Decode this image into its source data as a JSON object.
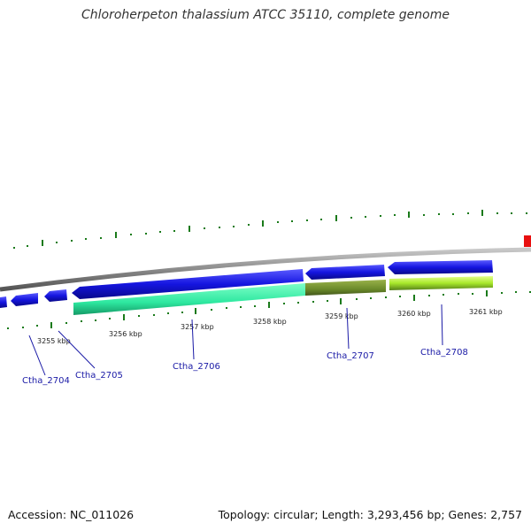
{
  "title": "Chloroherpeton thalassium ATCC 35110, complete genome",
  "footer": {
    "accession": "Accession: NC_011026",
    "summary": "Topology: circular; Length: 3,293,456 bp; Genes: 2,757"
  },
  "axis_labels": [
    "3255 kbp",
    "3256 kbp",
    "3257 kbp",
    "3258 kbp",
    "3259 kbp",
    "3260 kbp",
    "3261 kbp"
  ],
  "genes": [
    {
      "label": "Ctha_2704"
    },
    {
      "label": "Ctha_2705"
    },
    {
      "label": "Ctha_2706"
    },
    {
      "label": "Ctha_2707"
    },
    {
      "label": "Ctha_2708"
    }
  ],
  "colors": {
    "cds": "#1010e8",
    "feature_1": "#2ee8a0",
    "feature_2": "#6b8a2a",
    "feature_3": "#a8e82a",
    "backbone": "#8a8a8a",
    "gc_ticks": "#1a7a1a",
    "marker": "#e81010",
    "labels": "#1a1aa6"
  }
}
